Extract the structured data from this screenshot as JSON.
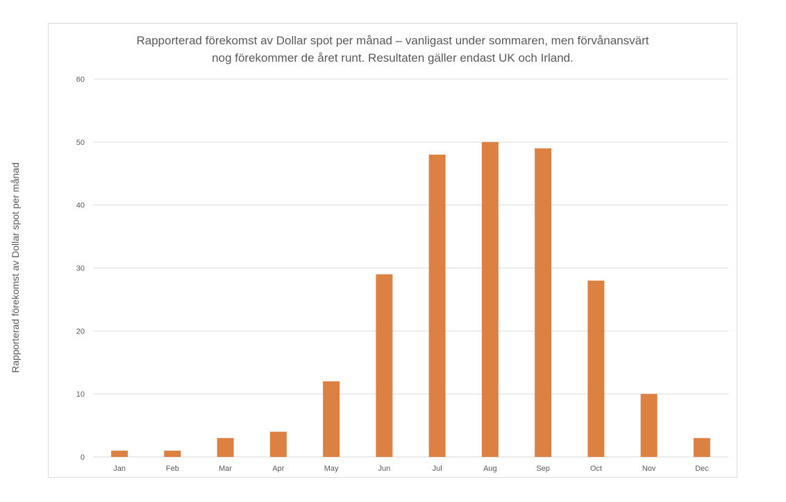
{
  "chart_data": {
    "type": "bar",
    "title_lines": [
      "Rapporterad förekomst av Dollar spot per månad – vanligast under sommaren, men förvånansvärt",
      "nog förekommer de året runt. Resultaten gäller endast UK och Irland."
    ],
    "ylabel": "Rapporterad förekomst av Dollar spot per månad",
    "xlabel": "",
    "categories": [
      "Jan",
      "Feb",
      "Mar",
      "Apr",
      "May",
      "Jun",
      "Jul",
      "Aug",
      "Sep",
      "Oct",
      "Nov",
      "Dec"
    ],
    "values": [
      1,
      1,
      3,
      4,
      12,
      29,
      48,
      50,
      49,
      28,
      10,
      3
    ],
    "ylim": [
      0,
      60
    ],
    "yticks": [
      0,
      10,
      20,
      30,
      40,
      50,
      60
    ],
    "grid": true,
    "legend": "none",
    "bar_color": "#dd8143",
    "grid_color": "#d9d9d9"
  }
}
